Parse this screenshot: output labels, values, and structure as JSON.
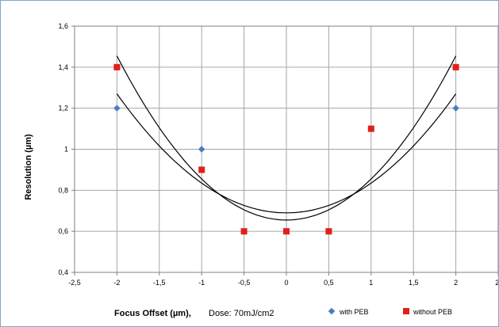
{
  "chart_data": {
    "type": "scatter",
    "title": "",
    "xlabel": "Focus Offset (µm),",
    "xlabel_note": "Dose: 70mJ/cm2",
    "ylabel": "Resolution (µm)",
    "xlim": [
      -2.5,
      2.5
    ],
    "ylim": [
      0.4,
      1.6
    ],
    "x_ticks": [
      "-2,5",
      "-2",
      "-1,5",
      "-1",
      "-0,5",
      "0",
      "0,5",
      "1",
      "1,5",
      "2",
      "2,"
    ],
    "y_ticks": [
      "0,4",
      "0,6",
      "0,8",
      "1",
      "1,2",
      "1,4",
      "1,6"
    ],
    "grid": true,
    "legend_position": "bottom-right",
    "series": [
      {
        "name": "with PEB",
        "marker": "diamond",
        "color": "#4a7ebb",
        "x": [
          -2,
          -1,
          -0.5,
          0,
          0.5,
          1,
          2
        ],
        "y": [
          1.2,
          1.0,
          0.6,
          0.6,
          0.6,
          1.1,
          1.2
        ],
        "trendline": {
          "type": "poly2",
          "a": 0.145,
          "b": 0.0,
          "c": 0.69
        }
      },
      {
        "name": "without PEB",
        "marker": "square",
        "color": "#e0201b",
        "x": [
          -2,
          -1,
          -0.5,
          0,
          0.5,
          1,
          2
        ],
        "y": [
          1.4,
          0.9,
          0.6,
          0.6,
          0.6,
          1.1,
          1.4
        ],
        "trendline": {
          "type": "poly2",
          "a": 0.2,
          "b": 0.0,
          "c": 0.655
        }
      }
    ]
  }
}
